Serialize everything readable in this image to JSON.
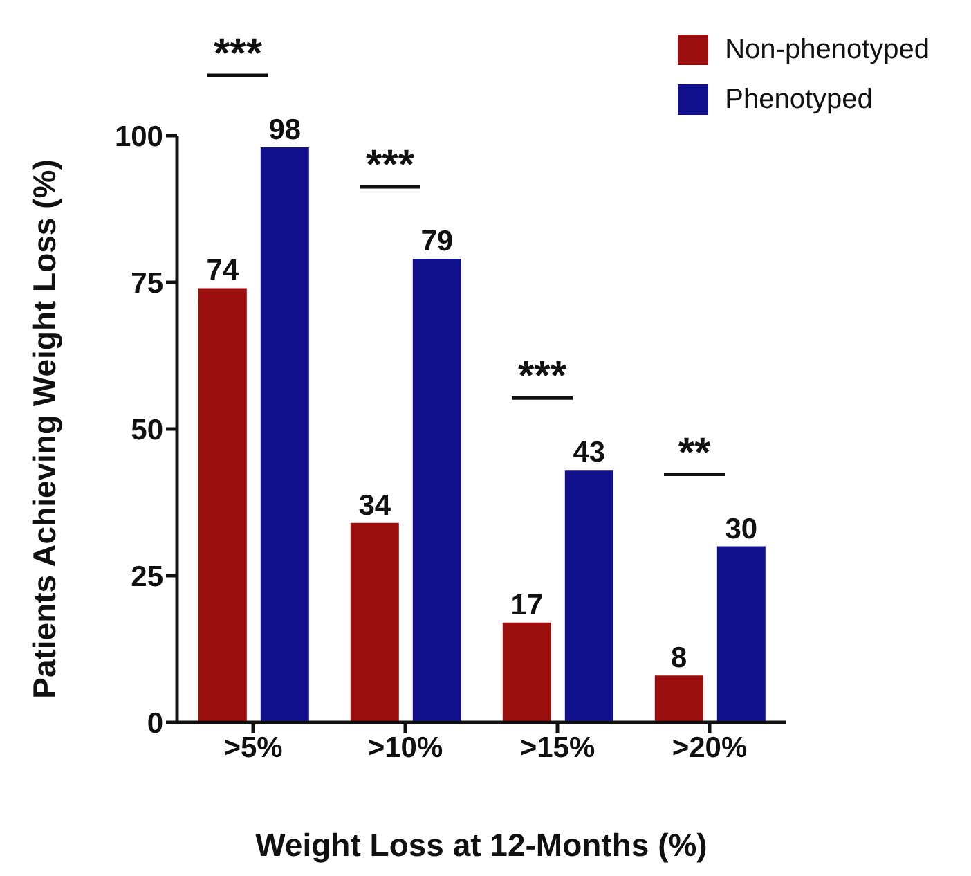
{
  "chart_data": {
    "type": "bar",
    "xlabel": "Weight Loss at 12-Months (%)",
    "ylabel": "Patients Achieving Weight Loss (%)",
    "categories": [
      ">5%",
      ">10%",
      ">15%",
      ">20%"
    ],
    "series": [
      {
        "name": "Non-phenotyped",
        "color": "#9b0f0f",
        "values": [
          74,
          34,
          17,
          8
        ]
      },
      {
        "name": "Phenotyped",
        "color": "#10108c",
        "values": [
          98,
          79,
          43,
          30
        ]
      }
    ],
    "ylim": [
      0,
      100
    ],
    "yticks": [
      0,
      25,
      50,
      75,
      100
    ],
    "data_labels": true,
    "legend": "top right",
    "grid": false,
    "annotations": [
      "***",
      "***",
      "***",
      "**"
    ]
  }
}
